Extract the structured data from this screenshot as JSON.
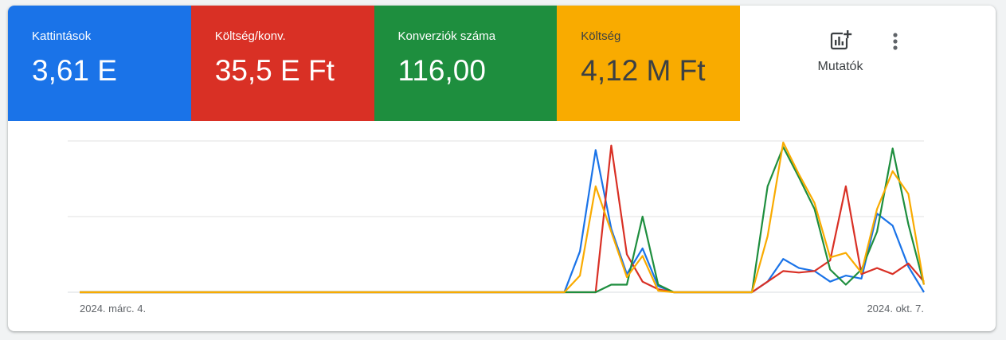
{
  "metrics": [
    {
      "label": "Kattintások",
      "value": "3,61 E",
      "color": "#1a73e8",
      "text_color": "white"
    },
    {
      "label": "Költség/konv.",
      "value": "35,5 E Ft",
      "color": "#d93025",
      "text_color": "white"
    },
    {
      "label": "Konverziók száma",
      "value": "116,00",
      "color": "#1e8e3e",
      "text_color": "white"
    },
    {
      "label": "Költség",
      "value": "4,12 M Ft",
      "color": "#f9ab00",
      "text_color": "dark"
    }
  ],
  "toolbar": {
    "metrics_button_label": "Mutatók",
    "metrics_icon": "add-chart-icon",
    "more_icon": "more-vert-icon"
  },
  "chart_data": {
    "type": "line",
    "x_start_label": "2024. márc. 4.",
    "x_end_label": "2024. okt. 7.",
    "grid": true,
    "ylim": [
      0,
      100
    ],
    "series": [
      {
        "color": "#1a73e8",
        "values": [
          0,
          0,
          0,
          0,
          0,
          0,
          0,
          0,
          0,
          0,
          0,
          0,
          0,
          0,
          0,
          0,
          0,
          0,
          0,
          0,
          0,
          0,
          0,
          0,
          0,
          0,
          0,
          0,
          0,
          0,
          0,
          0,
          27,
          94,
          42,
          12,
          29,
          4,
          0,
          0,
          0,
          0,
          0,
          0,
          7,
          22,
          16,
          14,
          7,
          11,
          9,
          52,
          44,
          17,
          0
        ]
      },
      {
        "color": "#d93025",
        "values": [
          0,
          0,
          0,
          0,
          0,
          0,
          0,
          0,
          0,
          0,
          0,
          0,
          0,
          0,
          0,
          0,
          0,
          0,
          0,
          0,
          0,
          0,
          0,
          0,
          0,
          0,
          0,
          0,
          0,
          0,
          0,
          0,
          0,
          0,
          97,
          25,
          7,
          2,
          0,
          0,
          0,
          0,
          0,
          0,
          7,
          14,
          13,
          14,
          21,
          70,
          12,
          16,
          12,
          19,
          7
        ]
      },
      {
        "color": "#1e8e3e",
        "values": [
          0,
          0,
          0,
          0,
          0,
          0,
          0,
          0,
          0,
          0,
          0,
          0,
          0,
          0,
          0,
          0,
          0,
          0,
          0,
          0,
          0,
          0,
          0,
          0,
          0,
          0,
          0,
          0,
          0,
          0,
          0,
          0,
          0,
          0,
          5,
          5,
          50,
          5,
          0,
          0,
          0,
          0,
          0,
          0,
          70,
          96,
          76,
          55,
          15,
          5,
          15,
          40,
          95,
          45,
          5
        ]
      },
      {
        "color": "#f9ab00",
        "values": [
          0,
          0,
          0,
          0,
          0,
          0,
          0,
          0,
          0,
          0,
          0,
          0,
          0,
          0,
          0,
          0,
          0,
          0,
          0,
          0,
          0,
          0,
          0,
          0,
          0,
          0,
          0,
          0,
          0,
          0,
          0,
          0,
          11,
          70,
          40,
          10,
          24,
          1,
          0,
          0,
          0,
          0,
          0,
          0,
          37,
          99,
          78,
          59,
          23,
          26,
          13,
          55,
          80,
          65,
          5
        ]
      }
    ]
  }
}
